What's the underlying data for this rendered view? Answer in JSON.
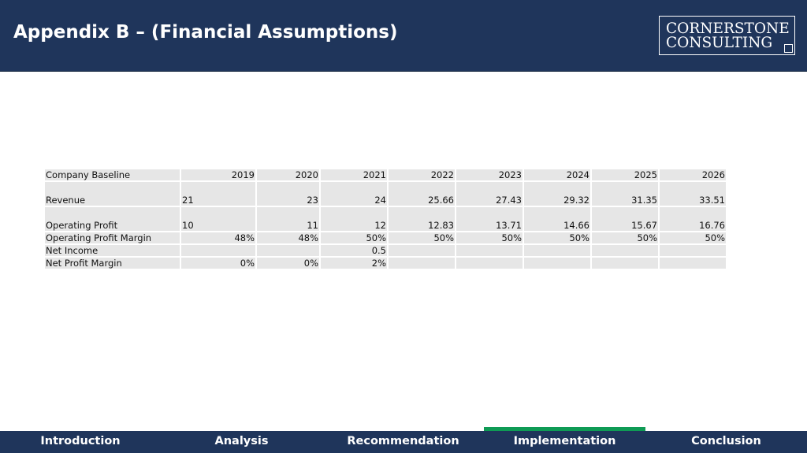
{
  "slide": {
    "title": "Appendix B – (Financial Assumptions)"
  },
  "logo": {
    "line1": "CORNERSTONE",
    "line2": "CONSULTING"
  },
  "table": {
    "header": {
      "label": "Company Baseline",
      "years": [
        "2019",
        "2020",
        "2021",
        "2022",
        "2023",
        "2024",
        "2025",
        "2026"
      ]
    },
    "rows": [
      {
        "label": "Revenue",
        "values": [
          "21",
          "23",
          "24",
          "25.66",
          "27.43",
          "29.32",
          "31.35",
          "33.51"
        ]
      },
      {
        "label": "Operating Profit",
        "values": [
          "10",
          "11",
          "12",
          "12.83",
          "13.71",
          "14.66",
          "15.67",
          "16.76"
        ]
      },
      {
        "label": "Operating Profit Margin",
        "values": [
          "48%",
          "48%",
          "50%",
          "50%",
          "50%",
          "50%",
          "50%",
          "50%"
        ]
      },
      {
        "label": "Net Income",
        "values": [
          "",
          "",
          "0.5",
          "",
          "",
          "",
          "",
          ""
        ]
      },
      {
        "label": "Net Profit Margin",
        "values": [
          "0%",
          "0%",
          "2%",
          "",
          "",
          "",
          "",
          ""
        ]
      }
    ]
  },
  "nav": {
    "items": [
      {
        "label": "Introduction"
      },
      {
        "label": "Analysis"
      },
      {
        "label": "Recommendation"
      },
      {
        "label": "Implementation"
      },
      {
        "label": "Conclusion"
      }
    ],
    "active": "Implementation",
    "accent_color": "#0f9b55",
    "bar_color": "#1f355b"
  }
}
